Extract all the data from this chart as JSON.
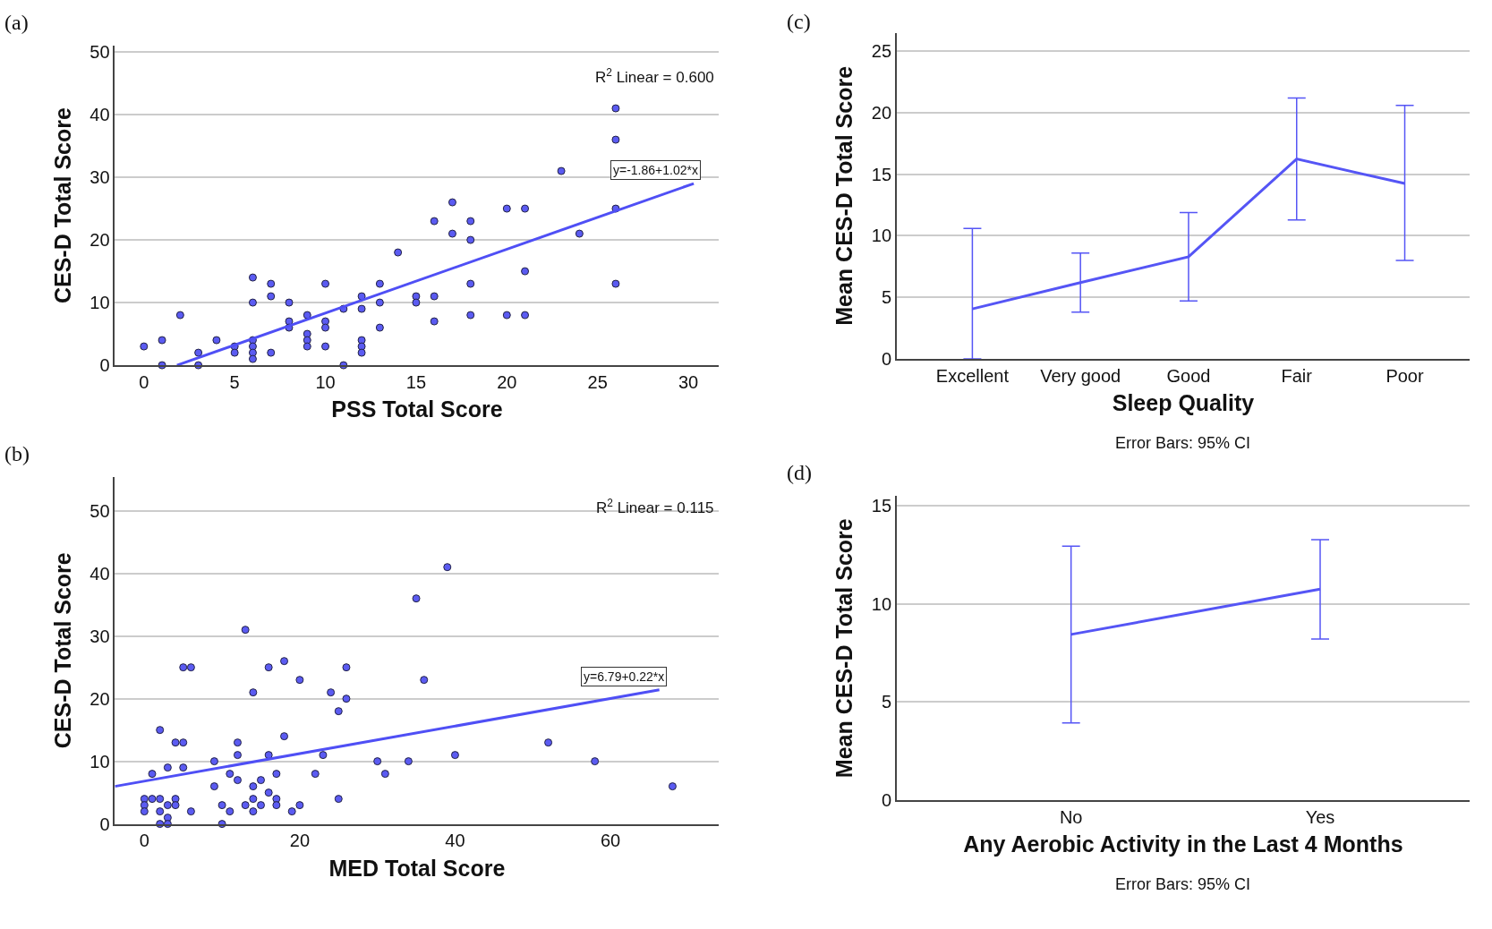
{
  "chart_data": [
    {
      "type": "scatter",
      "title": "(a)",
      "xlabel": "PSS Total Score",
      "ylabel": "CES-D Total Score",
      "xlim": [
        -1.6,
        31.7
      ],
      "ylim": [
        0,
        51
      ],
      "xticks": [
        0,
        5,
        10,
        15,
        20,
        25,
        30
      ],
      "yticks": [
        0,
        10,
        20,
        30,
        40,
        50
      ],
      "grid": "y",
      "marker": "circle",
      "annotations": [
        "R$^{2}$ Linear = 0.600",
        {
          "text": "y=-1.86+1.02*x",
          "x": 30.3,
          "y": 29.05
        }
      ],
      "series": [
        {
          "color": "#5b5bf2",
          "x": [
            0,
            1,
            1,
            2,
            3,
            3,
            4,
            5,
            5,
            6,
            6,
            6,
            6,
            6,
            6,
            7,
            7,
            7,
            8,
            8,
            8,
            9,
            9,
            9,
            9,
            10,
            10,
            10,
            10,
            11,
            11,
            12,
            12,
            12,
            12,
            12,
            13,
            13,
            13,
            14,
            15,
            15,
            16,
            16,
            16,
            17,
            17,
            18,
            18,
            18,
            18,
            20,
            20,
            21,
            21,
            21,
            23,
            24,
            26,
            26,
            26,
            26
          ],
          "values": [
            3,
            4,
            0,
            8,
            2,
            0,
            4,
            3,
            2,
            14,
            10,
            4,
            3,
            2,
            1,
            13,
            11,
            2,
            10,
            7,
            6,
            8,
            5,
            4,
            3,
            13,
            7,
            6,
            3,
            9,
            0,
            11,
            9,
            4,
            3,
            2,
            13,
            10,
            6,
            18,
            11,
            10,
            23,
            11,
            7,
            26,
            21,
            23,
            20,
            13,
            8,
            25,
            8,
            25,
            15,
            8,
            31,
            21,
            41,
            36,
            25,
            13
          ]
        },
        {
          "type": "line",
          "color": "#4f4ff5",
          "marker": "none",
          "x": [
            1.82,
            30.3
          ],
          "values": [
            0,
            29
          ]
        }
      ]
    },
    {
      "type": "scatter",
      "title": "(b)",
      "xlabel": "MED Total Score",
      "ylabel": "CES-D Total Score",
      "xlim": [
        -3.8,
        74
      ],
      "ylim": [
        0,
        55.4
      ],
      "xticks": [
        0,
        20,
        40,
        60
      ],
      "yticks": [
        0,
        10,
        20,
        30,
        40,
        50
      ],
      "grid": "y",
      "marker": "circle",
      "annotations": [
        "R$^{2}$ Linear = 0.115",
        {
          "text": "y=6.79+0.22*x",
          "x": 66.3,
          "y": 21.4
        }
      ],
      "series": [
        {
          "color": "#5b5bf2",
          "x": [
            0,
            0,
            0,
            1,
            1,
            2,
            2,
            2,
            2,
            3,
            3,
            3,
            3,
            4,
            4,
            4,
            5,
            5,
            5,
            6,
            6,
            9,
            9,
            10,
            10,
            11,
            11,
            12,
            12,
            12,
            13,
            13,
            14,
            14,
            14,
            14,
            15,
            15,
            16,
            16,
            16,
            17,
            17,
            17,
            18,
            18,
            19,
            20,
            20,
            22,
            23,
            24,
            25,
            25,
            26,
            26,
            30,
            31,
            34,
            35,
            36,
            39,
            40,
            52,
            58,
            68
          ],
          "values": [
            4,
            3,
            2,
            8,
            4,
            15,
            4,
            2,
            0,
            9,
            3,
            1,
            0,
            13,
            4,
            3,
            25,
            13,
            9,
            25,
            2,
            10,
            6,
            3,
            0,
            8,
            2,
            13,
            11,
            7,
            31,
            3,
            21,
            6,
            4,
            2,
            7,
            3,
            25,
            11,
            5,
            8,
            4,
            3,
            26,
            14,
            2,
            23,
            3,
            8,
            11,
            21,
            18,
            4,
            25,
            20,
            10,
            8,
            10,
            36,
            23,
            41,
            11,
            13,
            10,
            6
          ]
        },
        {
          "type": "line",
          "color": "#4f4ff5",
          "marker": "none",
          "x": [
            -3.8,
            66.3
          ],
          "values": [
            6,
            21.4
          ]
        }
      ]
    },
    {
      "type": "line",
      "title": "(c)",
      "xlabel": "Sleep Quality",
      "ylabel": "Mean CES-D Total Score",
      "categories": [
        "Excellent",
        "Very good",
        "Good",
        "Fair",
        "Poor"
      ],
      "ylim": [
        0,
        26.5
      ],
      "yticks": [
        0,
        5,
        10,
        15,
        20,
        25
      ],
      "grid": "y",
      "marker": "none",
      "line_style": "solid",
      "annotations": [
        "Error Bars: 95% CI"
      ],
      "series": [
        {
          "color": "#5555f5",
          "values": [
            4.06,
            6.2,
            8.3,
            16.25,
            14.25
          ],
          "errors": [
            [
              0,
              10.6
            ],
            [
              3.8,
              8.6
            ],
            [
              4.7,
              11.9
            ],
            [
              11.3,
              21.2
            ],
            [
              8.0,
              20.6
            ]
          ]
        }
      ]
    },
    {
      "type": "line",
      "title": "(d)",
      "xlabel": "Any Aerobic Activity in the Last 4 Months",
      "ylabel": "Mean CES-D Total Score",
      "categories": [
        "No",
        "Yes"
      ],
      "ylim": [
        0,
        15.5
      ],
      "yticks": [
        0,
        5,
        10,
        15
      ],
      "grid": "y",
      "marker": "none",
      "line_style": "solid",
      "annotations": [
        "Error Bars: 95% CI"
      ],
      "series": [
        {
          "color": "#5555f5",
          "values": [
            8.45,
            10.76
          ],
          "errors": [
            [
              3.94,
              12.95
            ],
            [
              8.22,
              13.28
            ]
          ]
        }
      ]
    }
  ]
}
